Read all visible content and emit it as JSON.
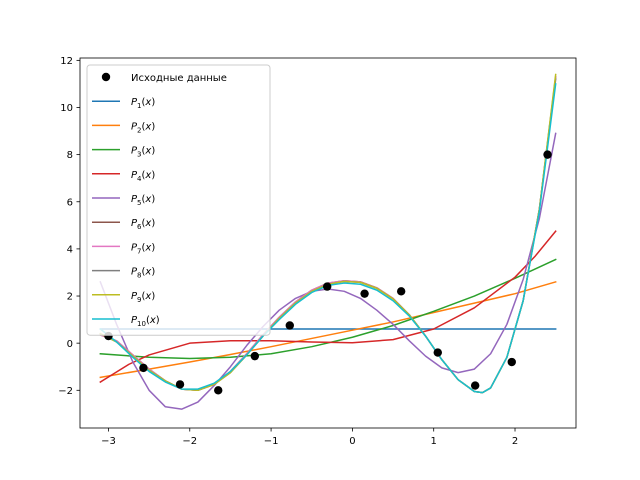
{
  "chart_data": {
    "type": "line",
    "title": "",
    "xlabel": "",
    "ylabel": "",
    "xlim": [
      -3.35,
      2.75
    ],
    "ylim": [
      -3.6,
      12.1
    ],
    "grid": false,
    "legend_placement": "top-left",
    "x_ticks": [
      -3,
      -2,
      -1,
      0,
      1,
      2
    ],
    "x_tick_labels": [
      "−3",
      "−2",
      "−1",
      "0",
      "1",
      "2"
    ],
    "y_ticks": [
      -2,
      0,
      2,
      4,
      6,
      8,
      10,
      12
    ],
    "y_tick_labels": [
      "−2",
      "0",
      "2",
      "4",
      "6",
      "8",
      "10",
      "12"
    ],
    "scatter": {
      "name": "Исходные данные",
      "color": "#000000",
      "x": [
        -3.0,
        -2.57,
        -2.12,
        -1.65,
        -1.2,
        -0.77,
        -0.31,
        0.15,
        0.6,
        1.05,
        1.51,
        1.96,
        2.4
      ],
      "y": [
        0.3,
        -1.05,
        -1.75,
        -2.0,
        -0.55,
        0.75,
        2.4,
        2.1,
        2.2,
        -0.4,
        -1.8,
        -0.8,
        8.0
      ]
    },
    "series": [
      {
        "label_base": "P",
        "label_sub": "1",
        "label_arg": "(x)",
        "color": "#1f77b4",
        "x": [
          -3.1,
          2.5
        ],
        "y": [
          0.6,
          0.6
        ]
      },
      {
        "label_base": "P",
        "label_sub": "2",
        "label_arg": "(x)",
        "color": "#ff7f0e",
        "x": [
          -3.1,
          -2.5,
          -2.0,
          -1.5,
          -1.0,
          -0.5,
          0.0,
          0.5,
          1.0,
          1.5,
          2.0,
          2.5
        ],
        "y": [
          -1.45,
          -1.1,
          -0.8,
          -0.48,
          -0.15,
          0.2,
          0.55,
          0.9,
          1.3,
          1.7,
          2.1,
          2.6
        ]
      },
      {
        "label_base": "P",
        "label_sub": "3",
        "label_arg": "(x)",
        "color": "#2ca02c",
        "x": [
          -3.1,
          -2.5,
          -2.0,
          -1.5,
          -1.0,
          -0.5,
          0.0,
          0.5,
          1.0,
          1.5,
          2.0,
          2.5
        ],
        "y": [
          -0.45,
          -0.6,
          -0.65,
          -0.6,
          -0.45,
          -0.15,
          0.25,
          0.75,
          1.35,
          2.0,
          2.75,
          3.55
        ]
      },
      {
        "label_base": "P",
        "label_sub": "4",
        "label_arg": "(x)",
        "color": "#d62728",
        "x": [
          -3.1,
          -2.75,
          -2.5,
          -2.0,
          -1.5,
          -1.0,
          -0.5,
          0.0,
          0.5,
          1.0,
          1.5,
          2.0,
          2.25,
          2.5
        ],
        "y": [
          -1.65,
          -0.9,
          -0.5,
          0.0,
          0.1,
          0.1,
          0.05,
          0.02,
          0.15,
          0.6,
          1.5,
          2.8,
          3.7,
          4.75
        ]
      },
      {
        "label_base": "P",
        "label_sub": "5",
        "label_arg": "(x)",
        "color": "#9467bd",
        "x": [
          -3.1,
          -2.9,
          -2.7,
          -2.5,
          -2.3,
          -2.1,
          -1.9,
          -1.7,
          -1.5,
          -1.3,
          -1.1,
          -0.9,
          -0.7,
          -0.5,
          -0.3,
          -0.1,
          0.1,
          0.3,
          0.5,
          0.7,
          0.9,
          1.1,
          1.3,
          1.5,
          1.7,
          1.9,
          2.1,
          2.3,
          2.5
        ],
        "y": [
          2.6,
          0.8,
          -0.8,
          -2.0,
          -2.7,
          -2.8,
          -2.5,
          -1.8,
          -1.0,
          -0.1,
          0.7,
          1.4,
          1.9,
          2.2,
          2.3,
          2.2,
          1.9,
          1.4,
          0.8,
          0.1,
          -0.55,
          -1.05,
          -1.25,
          -1.1,
          -0.45,
          0.8,
          2.7,
          5.3,
          8.9
        ]
      },
      {
        "label_base": "P",
        "label_sub": "6",
        "label_arg": "(x)",
        "color": "#8c564b",
        "x": [
          -3.1,
          -2.9,
          -2.7,
          -2.5,
          -2.3,
          -2.1,
          -1.9,
          -1.7,
          -1.5,
          -1.3,
          -1.1,
          -0.9,
          -0.7,
          -0.5,
          -0.3,
          -0.1,
          0.1,
          0.3,
          0.5,
          0.7,
          0.9,
          1.1,
          1.3,
          1.5,
          1.6,
          1.7,
          1.9,
          2.1,
          2.3,
          2.5
        ],
        "y": [
          0.35,
          0.1,
          -0.5,
          -1.1,
          -1.6,
          -1.95,
          -2.0,
          -1.75,
          -1.2,
          -0.45,
          0.35,
          1.1,
          1.75,
          2.25,
          2.55,
          2.65,
          2.6,
          2.35,
          1.9,
          1.2,
          0.3,
          -0.7,
          -1.55,
          -2.05,
          -2.1,
          -1.9,
          -0.6,
          1.8,
          5.7,
          11.3
        ]
      },
      {
        "label_base": "P",
        "label_sub": "7",
        "label_arg": "(x)",
        "color": "#e377c2",
        "x": [
          -3.1,
          -2.9,
          -2.7,
          -2.5,
          -2.3,
          -2.1,
          -1.9,
          -1.7,
          -1.5,
          -1.3,
          -1.1,
          -0.9,
          -0.7,
          -0.5,
          -0.3,
          -0.1,
          0.1,
          0.3,
          0.5,
          0.7,
          0.9,
          1.1,
          1.3,
          1.5,
          1.6,
          1.7,
          1.9,
          2.1,
          2.3,
          2.5
        ],
        "y": [
          0.35,
          0.1,
          -0.5,
          -1.1,
          -1.6,
          -1.95,
          -2.0,
          -1.75,
          -1.2,
          -0.45,
          0.35,
          1.1,
          1.75,
          2.25,
          2.55,
          2.65,
          2.6,
          2.35,
          1.9,
          1.2,
          0.3,
          -0.7,
          -1.55,
          -2.05,
          -2.1,
          -1.9,
          -0.6,
          1.8,
          5.7,
          11.3
        ]
      },
      {
        "label_base": "P",
        "label_sub": "8",
        "label_arg": "(x)",
        "color": "#7f7f7f",
        "x": [
          -3.1,
          -2.9,
          -2.7,
          -2.5,
          -2.3,
          -2.1,
          -1.9,
          -1.7,
          -1.5,
          -1.3,
          -1.1,
          -0.9,
          -0.7,
          -0.5,
          -0.3,
          -0.1,
          0.1,
          0.3,
          0.5,
          0.7,
          0.9,
          1.1,
          1.3,
          1.5,
          1.6,
          1.7,
          1.9,
          2.1,
          2.3,
          2.5
        ],
        "y": [
          0.4,
          0.05,
          -0.55,
          -1.15,
          -1.6,
          -1.95,
          -2.0,
          -1.75,
          -1.25,
          -0.5,
          0.3,
          1.05,
          1.7,
          2.2,
          2.5,
          2.62,
          2.58,
          2.33,
          1.88,
          1.2,
          0.3,
          -0.7,
          -1.55,
          -2.05,
          -2.1,
          -1.9,
          -0.6,
          1.8,
          5.7,
          11.2
        ]
      },
      {
        "label_base": "P",
        "label_sub": "9",
        "label_arg": "(x)",
        "color": "#bcbd22",
        "x": [
          -3.1,
          -2.9,
          -2.7,
          -2.5,
          -2.3,
          -2.1,
          -1.9,
          -1.7,
          -1.5,
          -1.3,
          -1.1,
          -0.9,
          -0.7,
          -0.5,
          -0.3,
          -0.1,
          0.1,
          0.3,
          0.5,
          0.7,
          0.9,
          1.1,
          1.3,
          1.5,
          1.6,
          1.7,
          1.9,
          2.1,
          2.3,
          2.5
        ],
        "y": [
          0.4,
          0.05,
          -0.55,
          -1.15,
          -1.6,
          -1.95,
          -2.0,
          -1.75,
          -1.25,
          -0.5,
          0.3,
          1.05,
          1.7,
          2.2,
          2.5,
          2.62,
          2.58,
          2.33,
          1.88,
          1.2,
          0.3,
          -0.7,
          -1.55,
          -2.05,
          -2.1,
          -1.9,
          -0.6,
          1.8,
          5.7,
          11.4
        ]
      },
      {
        "label_base": "P",
        "label_sub": "10",
        "label_arg": "(x)",
        "color": "#17becf",
        "x": [
          -3.1,
          -2.9,
          -2.7,
          -2.5,
          -2.3,
          -2.1,
          -1.9,
          -1.7,
          -1.5,
          -1.3,
          -1.1,
          -0.9,
          -0.7,
          -0.5,
          -0.3,
          -0.1,
          0.1,
          0.3,
          0.5,
          0.7,
          0.9,
          1.1,
          1.3,
          1.5,
          1.6,
          1.7,
          1.9,
          2.1,
          2.3,
          2.5
        ],
        "y": [
          0.6,
          0.05,
          -0.6,
          -1.2,
          -1.65,
          -1.95,
          -1.95,
          -1.7,
          -1.2,
          -0.5,
          0.3,
          1.0,
          1.65,
          2.15,
          2.45,
          2.55,
          2.5,
          2.25,
          1.8,
          1.15,
          0.3,
          -0.7,
          -1.55,
          -2.05,
          -2.1,
          -1.9,
          -0.6,
          1.8,
          5.6,
          11.0
        ]
      }
    ]
  }
}
